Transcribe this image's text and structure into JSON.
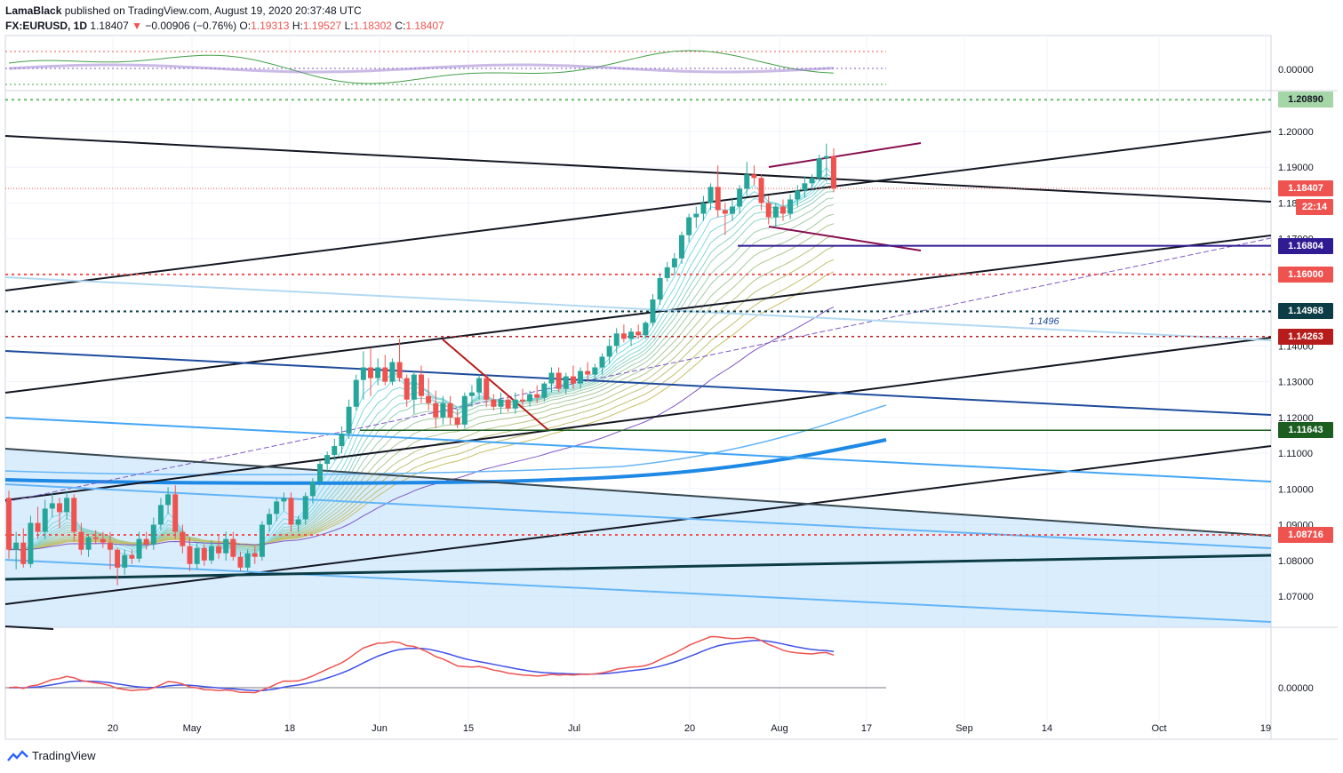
{
  "header": {
    "publisher": "LamaBlack",
    "published_text": "published on TradingView.com, August 19, 2020 20:37:48 UTC",
    "symbol": "FX:EURUSD, 1D",
    "last": "1.18407",
    "change": "−0.00906 (−0.76%)",
    "open_label": "O:",
    "open": "1.19313",
    "high_label": "H:",
    "high": "1.19527",
    "low_label": "L:",
    "low": "1.18302",
    "close_label": "C:",
    "close": "1.18407"
  },
  "price_axis": {
    "ticks": [
      "1.20000",
      "1.19000",
      "1.18000",
      "1.17000",
      "1.16000",
      "1.15000",
      "1.14000",
      "1.13000",
      "1.12000",
      "1.11000",
      "1.10000",
      "1.09000",
      "1.08000",
      "1.07000"
    ],
    "tags": [
      {
        "label": "1.20890",
        "color": "#a5d6a7",
        "text_color": "#131722",
        "price": 1.2089
      },
      {
        "label": "1.18407",
        "color": "#ef5350",
        "text_color": "#ffffff",
        "price": 1.18407
      },
      {
        "label": "22:14",
        "color": "#ef5350",
        "text_color": "#ffffff",
        "price": 1.1788
      },
      {
        "label": "1.16804",
        "color": "#311b92",
        "text_color": "#ffffff",
        "price": 1.16804
      },
      {
        "label": "1.16000",
        "color": "#ef5350",
        "text_color": "#ffffff",
        "price": 1.16
      },
      {
        "label": "1.14968",
        "color": "#0c3c45",
        "text_color": "#ffffff",
        "price": 1.14968
      },
      {
        "label": "1.14263",
        "color": "#b71c1c",
        "text_color": "#ffffff",
        "price": 1.14263
      },
      {
        "label": "1.11643",
        "color": "#1b5e20",
        "text_color": "#ffffff",
        "price": 1.11643
      },
      {
        "label": "1.08716",
        "color": "#ef5350",
        "text_color": "#ffffff",
        "price": 1.08716
      }
    ],
    "oscillator_zero": "0.00000"
  },
  "time_axis": {
    "labels": [
      "20",
      "May",
      "18",
      "Jun",
      "15",
      "Jul",
      "20",
      "Aug",
      "17",
      "Sep",
      "14",
      "Oct",
      "19"
    ]
  },
  "annotation": "1.1496",
  "footer": {
    "brand": "TradingView"
  },
  "chart_data": {
    "type": "candlestick",
    "symbol": "FX:EURUSD",
    "interval": "1D",
    "ylim": [
      1.062,
      1.2135
    ],
    "horizontal_levels": [
      1.2089,
      1.18407,
      1.16804,
      1.16,
      1.14968,
      1.14263,
      1.11643,
      1.08716
    ],
    "candles": [
      {
        "o": 1.0975,
        "h": 1.0995,
        "l": 1.0805,
        "c": 1.083
      },
      {
        "o": 1.083,
        "h": 1.088,
        "l": 1.0775,
        "c": 1.085
      },
      {
        "o": 1.085,
        "h": 1.089,
        "l": 1.078,
        "c": 1.079
      },
      {
        "o": 1.079,
        "h": 1.0925,
        "l": 1.078,
        "c": 1.0905
      },
      {
        "o": 1.0905,
        "h": 1.095,
        "l": 1.086,
        "c": 1.088
      },
      {
        "o": 1.088,
        "h": 1.097,
        "l": 1.086,
        "c": 1.0945
      },
      {
        "o": 1.0945,
        "h": 1.099,
        "l": 1.092,
        "c": 1.096
      },
      {
        "o": 1.096,
        "h": 1.0975,
        "l": 1.089,
        "c": 1.0935
      },
      {
        "o": 1.0935,
        "h": 1.0995,
        "l": 1.0915,
        "c": 1.0975
      },
      {
        "o": 1.0975,
        "h": 1.0985,
        "l": 1.0855,
        "c": 1.088
      },
      {
        "o": 1.088,
        "h": 1.0905,
        "l": 1.0815,
        "c": 1.083
      },
      {
        "o": 1.083,
        "h": 1.087,
        "l": 1.081,
        "c": 1.0865
      },
      {
        "o": 1.0865,
        "h": 1.0885,
        "l": 1.0845,
        "c": 1.086
      },
      {
        "o": 1.086,
        "h": 1.088,
        "l": 1.0835,
        "c": 1.085
      },
      {
        "o": 1.085,
        "h": 1.088,
        "l": 1.0775,
        "c": 1.083
      },
      {
        "o": 1.083,
        "h": 1.0835,
        "l": 1.073,
        "c": 1.078
      },
      {
        "o": 1.078,
        "h": 1.083,
        "l": 1.076,
        "c": 1.0815
      },
      {
        "o": 1.0815,
        "h": 1.083,
        "l": 1.079,
        "c": 1.0805
      },
      {
        "o": 1.0805,
        "h": 1.088,
        "l": 1.0795,
        "c": 1.086
      },
      {
        "o": 1.086,
        "h": 1.088,
        "l": 1.083,
        "c": 1.0845
      },
      {
        "o": 1.0845,
        "h": 1.092,
        "l": 1.083,
        "c": 1.09
      },
      {
        "o": 1.09,
        "h": 1.0975,
        "l": 1.0885,
        "c": 1.0955
      },
      {
        "o": 1.0955,
        "h": 1.1005,
        "l": 1.093,
        "c": 1.0985
      },
      {
        "o": 1.0985,
        "h": 1.101,
        "l": 1.086,
        "c": 1.088
      },
      {
        "o": 1.088,
        "h": 1.09,
        "l": 1.082,
        "c": 1.084
      },
      {
        "o": 1.084,
        "h": 1.0865,
        "l": 1.077,
        "c": 1.079
      },
      {
        "o": 1.079,
        "h": 1.085,
        "l": 1.0775,
        "c": 1.0835
      },
      {
        "o": 1.0835,
        "h": 1.0845,
        "l": 1.0785,
        "c": 1.08
      },
      {
        "o": 1.08,
        "h": 1.0855,
        "l": 1.079,
        "c": 1.084
      },
      {
        "o": 1.084,
        "h": 1.087,
        "l": 1.0805,
        "c": 1.082
      },
      {
        "o": 1.082,
        "h": 1.088,
        "l": 1.08,
        "c": 1.086
      },
      {
        "o": 1.086,
        "h": 1.088,
        "l": 1.08,
        "c": 1.081
      },
      {
        "o": 1.081,
        "h": 1.0825,
        "l": 1.077,
        "c": 1.078
      },
      {
        "o": 1.078,
        "h": 1.083,
        "l": 1.077,
        "c": 1.082
      },
      {
        "o": 1.082,
        "h": 1.084,
        "l": 1.079,
        "c": 1.081
      },
      {
        "o": 1.081,
        "h": 1.091,
        "l": 1.08,
        "c": 1.09
      },
      {
        "o": 1.09,
        "h": 1.0945,
        "l": 1.088,
        "c": 1.093
      },
      {
        "o": 1.093,
        "h": 1.0975,
        "l": 1.091,
        "c": 1.0965
      },
      {
        "o": 1.0965,
        "h": 1.099,
        "l": 1.094,
        "c": 1.0975
      },
      {
        "o": 1.0975,
        "h": 1.099,
        "l": 1.088,
        "c": 1.09
      },
      {
        "o": 1.09,
        "h": 1.0925,
        "l": 1.088,
        "c": 1.0915
      },
      {
        "o": 1.0915,
        "h": 1.099,
        "l": 1.09,
        "c": 1.098
      },
      {
        "o": 1.098,
        "h": 1.103,
        "l": 1.096,
        "c": 1.102
      },
      {
        "o": 1.102,
        "h": 1.108,
        "l": 1.101,
        "c": 1.107
      },
      {
        "o": 1.107,
        "h": 1.1105,
        "l": 1.105,
        "c": 1.1095
      },
      {
        "o": 1.1095,
        "h": 1.114,
        "l": 1.108,
        "c": 1.112
      },
      {
        "o": 1.112,
        "h": 1.1175,
        "l": 1.11,
        "c": 1.1155
      },
      {
        "o": 1.1155,
        "h": 1.125,
        "l": 1.114,
        "c": 1.123
      },
      {
        "o": 1.123,
        "h": 1.132,
        "l": 1.122,
        "c": 1.1305
      },
      {
        "o": 1.1305,
        "h": 1.1385,
        "l": 1.125,
        "c": 1.134
      },
      {
        "o": 1.134,
        "h": 1.1395,
        "l": 1.126,
        "c": 1.131
      },
      {
        "o": 1.131,
        "h": 1.1365,
        "l": 1.129,
        "c": 1.134
      },
      {
        "o": 1.134,
        "h": 1.1375,
        "l": 1.129,
        "c": 1.13
      },
      {
        "o": 1.13,
        "h": 1.1365,
        "l": 1.129,
        "c": 1.1355
      },
      {
        "o": 1.1355,
        "h": 1.142,
        "l": 1.13,
        "c": 1.131
      },
      {
        "o": 1.131,
        "h": 1.132,
        "l": 1.123,
        "c": 1.125
      },
      {
        "o": 1.125,
        "h": 1.133,
        "l": 1.121,
        "c": 1.132
      },
      {
        "o": 1.132,
        "h": 1.1345,
        "l": 1.124,
        "c": 1.126
      },
      {
        "o": 1.126,
        "h": 1.131,
        "l": 1.122,
        "c": 1.124
      },
      {
        "o": 1.124,
        "h": 1.1275,
        "l": 1.117,
        "c": 1.12
      },
      {
        "o": 1.12,
        "h": 1.126,
        "l": 1.118,
        "c": 1.124
      },
      {
        "o": 1.124,
        "h": 1.126,
        "l": 1.118,
        "c": 1.12
      },
      {
        "o": 1.12,
        "h": 1.122,
        "l": 1.117,
        "c": 1.118
      },
      {
        "o": 1.118,
        "h": 1.127,
        "l": 1.117,
        "c": 1.126
      },
      {
        "o": 1.126,
        "h": 1.129,
        "l": 1.123,
        "c": 1.127
      },
      {
        "o": 1.127,
        "h": 1.132,
        "l": 1.125,
        "c": 1.131
      },
      {
        "o": 1.131,
        "h": 1.132,
        "l": 1.123,
        "c": 1.125
      },
      {
        "o": 1.125,
        "h": 1.1265,
        "l": 1.122,
        "c": 1.123
      },
      {
        "o": 1.123,
        "h": 1.127,
        "l": 1.121,
        "c": 1.125
      },
      {
        "o": 1.125,
        "h": 1.126,
        "l": 1.1215,
        "c": 1.1225
      },
      {
        "o": 1.1225,
        "h": 1.127,
        "l": 1.121,
        "c": 1.125
      },
      {
        "o": 1.125,
        "h": 1.128,
        "l": 1.123,
        "c": 1.1245
      },
      {
        "o": 1.1245,
        "h": 1.1275,
        "l": 1.123,
        "c": 1.1265
      },
      {
        "o": 1.1265,
        "h": 1.129,
        "l": 1.124,
        "c": 1.1255
      },
      {
        "o": 1.1255,
        "h": 1.13,
        "l": 1.1245,
        "c": 1.1295
      },
      {
        "o": 1.1295,
        "h": 1.134,
        "l": 1.127,
        "c": 1.1325
      },
      {
        "o": 1.1325,
        "h": 1.134,
        "l": 1.127,
        "c": 1.128
      },
      {
        "o": 1.128,
        "h": 1.1325,
        "l": 1.1265,
        "c": 1.1315
      },
      {
        "o": 1.1315,
        "h": 1.1345,
        "l": 1.128,
        "c": 1.1295
      },
      {
        "o": 1.1295,
        "h": 1.134,
        "l": 1.128,
        "c": 1.133
      },
      {
        "o": 1.133,
        "h": 1.1355,
        "l": 1.13,
        "c": 1.132
      },
      {
        "o": 1.132,
        "h": 1.135,
        "l": 1.1305,
        "c": 1.134
      },
      {
        "o": 1.134,
        "h": 1.138,
        "l": 1.132,
        "c": 1.137
      },
      {
        "o": 1.137,
        "h": 1.142,
        "l": 1.135,
        "c": 1.14
      },
      {
        "o": 1.14,
        "h": 1.145,
        "l": 1.138,
        "c": 1.1435
      },
      {
        "o": 1.1435,
        "h": 1.146,
        "l": 1.141,
        "c": 1.142
      },
      {
        "o": 1.142,
        "h": 1.145,
        "l": 1.14,
        "c": 1.144
      },
      {
        "o": 1.144,
        "h": 1.146,
        "l": 1.142,
        "c": 1.143
      },
      {
        "o": 1.143,
        "h": 1.147,
        "l": 1.142,
        "c": 1.1465
      },
      {
        "o": 1.1465,
        "h": 1.1545,
        "l": 1.1455,
        "c": 1.153
      },
      {
        "o": 1.153,
        "h": 1.16,
        "l": 1.1515,
        "c": 1.159
      },
      {
        "o": 1.159,
        "h": 1.1635,
        "l": 1.158,
        "c": 1.162
      },
      {
        "o": 1.162,
        "h": 1.166,
        "l": 1.16,
        "c": 1.1645
      },
      {
        "o": 1.1645,
        "h": 1.172,
        "l": 1.163,
        "c": 1.171
      },
      {
        "o": 1.171,
        "h": 1.177,
        "l": 1.169,
        "c": 1.176
      },
      {
        "o": 1.176,
        "h": 1.179,
        "l": 1.173,
        "c": 1.177
      },
      {
        "o": 1.177,
        "h": 1.182,
        "l": 1.175,
        "c": 1.18
      },
      {
        "o": 1.18,
        "h": 1.1855,
        "l": 1.178,
        "c": 1.1845
      },
      {
        "o": 1.1845,
        "h": 1.1905,
        "l": 1.176,
        "c": 1.178
      },
      {
        "o": 1.178,
        "h": 1.18,
        "l": 1.171,
        "c": 1.177
      },
      {
        "o": 1.177,
        "h": 1.1815,
        "l": 1.175,
        "c": 1.179
      },
      {
        "o": 1.179,
        "h": 1.185,
        "l": 1.177,
        "c": 1.184
      },
      {
        "o": 1.184,
        "h": 1.1915,
        "l": 1.182,
        "c": 1.188
      },
      {
        "o": 1.188,
        "h": 1.1905,
        "l": 1.185,
        "c": 1.187
      },
      {
        "o": 1.187,
        "h": 1.188,
        "l": 1.178,
        "c": 1.18
      },
      {
        "o": 1.18,
        "h": 1.182,
        "l": 1.174,
        "c": 1.176
      },
      {
        "o": 1.176,
        "h": 1.18,
        "l": 1.173,
        "c": 1.179
      },
      {
        "o": 1.179,
        "h": 1.181,
        "l": 1.175,
        "c": 1.177
      },
      {
        "o": 1.177,
        "h": 1.1825,
        "l": 1.1755,
        "c": 1.181
      },
      {
        "o": 1.181,
        "h": 1.185,
        "l": 1.179,
        "c": 1.1835
      },
      {
        "o": 1.1835,
        "h": 1.1875,
        "l": 1.1815,
        "c": 1.1855
      },
      {
        "o": 1.1855,
        "h": 1.188,
        "l": 1.1835,
        "c": 1.187
      },
      {
        "o": 1.187,
        "h": 1.1935,
        "l": 1.186,
        "c": 1.1925
      },
      {
        "o": 1.1925,
        "h": 1.1966,
        "l": 1.186,
        "c": 1.1931
      },
      {
        "o": 1.19313,
        "h": 1.19527,
        "l": 1.18302,
        "c": 1.18407
      }
    ]
  }
}
